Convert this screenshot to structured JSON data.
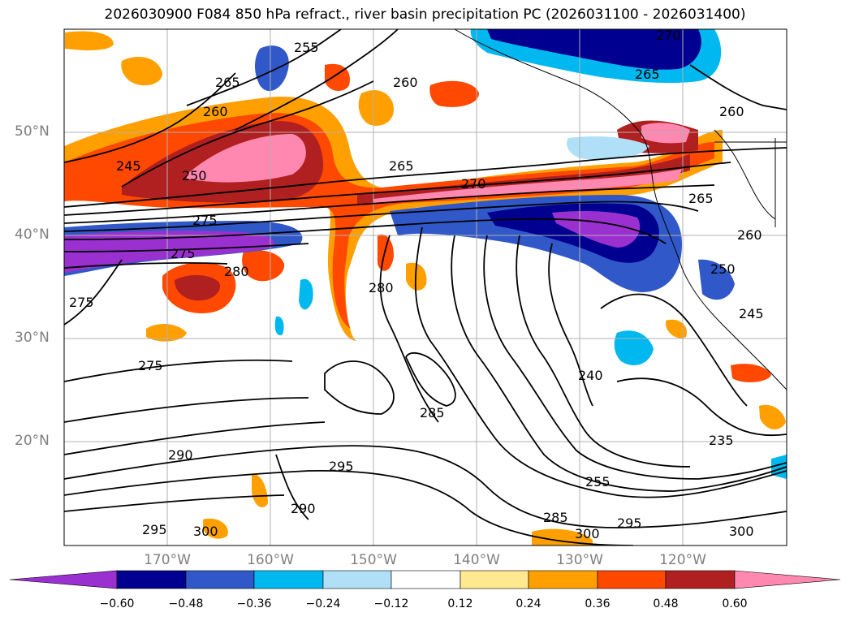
{
  "title": "2026030900 F084 850 hPa refract., river basin precipitation PC (2026031100 - 2026031400)",
  "lat_labels": [
    "50°N",
    "40°N",
    "30°N",
    "20°N"
  ],
  "lon_labels": [
    "170°W",
    "160°W",
    "150°W",
    "140°W",
    "130°W",
    "120°W"
  ],
  "colorbar": {
    "tick_labels": [
      "−0.60",
      "−0.48",
      "−0.36",
      "−0.24",
      "−0.12",
      "0.12",
      "0.24",
      "0.36",
      "0.48",
      "0.60"
    ],
    "colors": [
      "#9b30d0",
      "#000090",
      "#3058c8",
      "#00b8f0",
      "#b0e0f8",
      "#ffffff",
      "#ffe890",
      "#ffa000",
      "#ff4800",
      "#b02020",
      "#ff88b0"
    ]
  },
  "contour_labels": [
    "255",
    "270",
    "265",
    "260",
    "260",
    "265",
    "260",
    "245",
    "250",
    "265",
    "270",
    "265",
    "260",
    "275",
    "280",
    "250",
    "280",
    "275",
    "245",
    "275",
    "240",
    "275",
    "285",
    "235",
    "290",
    "295",
    "255",
    "290",
    "285",
    "295",
    "295",
    "300",
    "300",
    "300"
  ]
}
